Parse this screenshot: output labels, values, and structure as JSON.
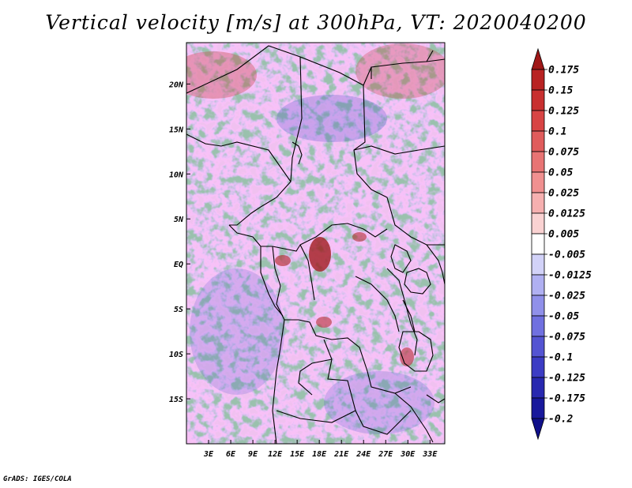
{
  "title": "Vertical velocity [m/s] at 300hPa, VT: 2020040200",
  "credit": "GrADS: IGES/COLA",
  "map": {
    "lon_ticks": [
      "3E",
      "6E",
      "9E",
      "12E",
      "15E",
      "18E",
      "21E",
      "24E",
      "27E",
      "30E",
      "33E"
    ],
    "lat_ticks": [
      "20N",
      "15N",
      "10N",
      "5N",
      "EQ",
      "5S",
      "10S",
      "15S"
    ],
    "lon_tick_values": [
      3,
      6,
      9,
      12,
      15,
      18,
      21,
      24,
      27,
      30,
      33
    ],
    "lat_tick_values": [
      20,
      15,
      10,
      5,
      0,
      -5,
      -10,
      -15
    ],
    "lon_range": [
      0,
      35
    ],
    "lat_range": [
      -20,
      24.6
    ]
  },
  "colorbar": {
    "labels": [
      "0.175",
      "0.15",
      "0.125",
      "0.1",
      "0.075",
      "0.05",
      "0.025",
      "0.0125",
      "0.005",
      "-0.005",
      "-0.0125",
      "-0.025",
      "-0.05",
      "-0.075",
      "-0.1",
      "-0.125",
      "-0.175",
      "-0.2"
    ],
    "colors": [
      "#a01818",
      "#b82222",
      "#c83030",
      "#d84444",
      "#e05c5c",
      "#e87474",
      "#f09090",
      "#f6b0b0",
      "#fad2d2",
      "#ffffff",
      "#d2d2f8",
      "#b0b0f2",
      "#9090ea",
      "#7070e0",
      "#5454d2",
      "#3c3cc4",
      "#2828b0",
      "#18189c",
      "#10108a"
    ]
  },
  "colors": {
    "frame": "#000000",
    "border_lines": "#000000",
    "red_accent": "#d05050",
    "blue_accent": "#6a6ae0"
  }
}
